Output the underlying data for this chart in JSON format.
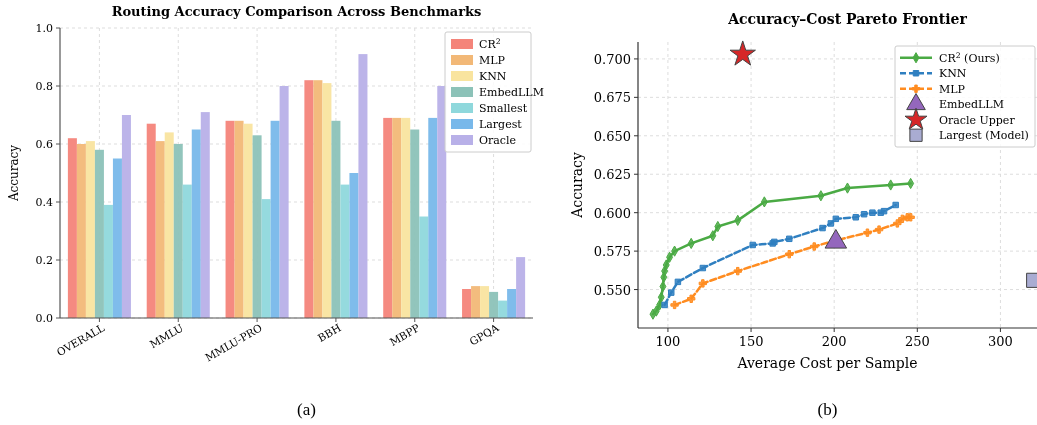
{
  "chart_data": [
    {
      "type": "bar",
      "title": "Routing Accuracy Comparison Across Benchmarks",
      "ylabel": "Accuracy",
      "categories": [
        "OVERALL",
        "MMLU",
        "MMLU-PRO",
        "BBH",
        "MBPP",
        "GPQA"
      ],
      "series": [
        {
          "name": "CR$^{2}$",
          "color": "#f4847a",
          "values": [
            0.62,
            0.67,
            0.68,
            0.82,
            0.69,
            0.1
          ]
        },
        {
          "name": "MLP",
          "color": "#f2b877",
          "values": [
            0.6,
            0.61,
            0.68,
            0.82,
            0.69,
            0.11
          ]
        },
        {
          "name": "KNN",
          "color": "#f9e49f",
          "values": [
            0.61,
            0.64,
            0.67,
            0.81,
            0.69,
            0.11
          ]
        },
        {
          "name": "EmbedLLM",
          "color": "#8cc2b8",
          "values": [
            0.58,
            0.6,
            0.63,
            0.68,
            0.65,
            0.09
          ]
        },
        {
          "name": "Smallest",
          "color": "#8fd8dc",
          "values": [
            0.39,
            0.46,
            0.41,
            0.46,
            0.35,
            0.06
          ]
        },
        {
          "name": "Largest",
          "color": "#78b8ea",
          "values": [
            0.55,
            0.65,
            0.68,
            0.5,
            0.69,
            0.1
          ]
        },
        {
          "name": "Oracle",
          "color": "#b8b0e8",
          "values": [
            0.7,
            0.71,
            0.8,
            0.91,
            0.8,
            0.21
          ]
        }
      ],
      "ylim": [
        0,
        1
      ],
      "yticks": [
        {
          "value": 0,
          "label": "0.0"
        },
        {
          "value": 0.2,
          "label": "0.2"
        },
        {
          "value": 0.4,
          "label": "0.4"
        },
        {
          "value": 0.6,
          "label": "0.6"
        },
        {
          "value": 0.8,
          "label": "0.8"
        },
        {
          "value": 1,
          "label": "1.0"
        }
      ],
      "grid": true,
      "legend": "top right",
      "annotations": [
        "(a)"
      ]
    },
    {
      "type": "line",
      "title": "Accuracy–Cost Pareto Frontier",
      "xlabel": "Average Cost per Sample",
      "ylabel": "Accuracy",
      "series": [
        {
          "name": "CR$^{2}$ (Ours)",
          "type": "line",
          "color": "#4aaa44",
          "marker": "diamond",
          "line_style": "solid",
          "x": [
            91,
            93,
            95,
            96,
            97,
            97.5,
            98,
            99,
            101,
            104,
            114,
            127,
            130,
            142,
            158,
            192,
            208,
            234,
            246
          ],
          "values": [
            0.534,
            0.536,
            0.54,
            0.545,
            0.552,
            0.558,
            0.562,
            0.566,
            0.571,
            0.575,
            0.58,
            0.585,
            0.591,
            0.595,
            0.607,
            0.611,
            0.616,
            0.618,
            0.619
          ]
        },
        {
          "name": "KNN",
          "type": "line",
          "color": "#2f7fc0",
          "marker": "square",
          "line_style": "dashed",
          "x": [
            98,
            102,
            106,
            121,
            151,
            163,
            164,
            173,
            193,
            198,
            201,
            213,
            218,
            223,
            228,
            230,
            237
          ],
          "values": [
            0.54,
            0.548,
            0.555,
            0.564,
            0.579,
            0.58,
            0.581,
            0.583,
            0.59,
            0.593,
            0.596,
            0.597,
            0.599,
            0.6,
            0.6,
            0.601,
            0.605
          ]
        },
        {
          "name": "MLP",
          "type": "line",
          "color": "#ff8c20",
          "marker": "cross",
          "line_style": "dashed",
          "x": [
            104,
            114,
            121,
            142,
            173,
            188,
            201,
            220,
            227,
            238,
            241,
            244,
            246
          ],
          "values": [
            0.54,
            0.544,
            0.554,
            0.562,
            0.573,
            0.578,
            0.582,
            0.587,
            0.589,
            0.593,
            0.596,
            0.597,
            0.597
          ]
        },
        {
          "name": "EmbedLLM",
          "type": "scatter",
          "color": "#9467bd",
          "marker": "triangle",
          "x": [
            201
          ],
          "values": [
            0.581
          ]
        },
        {
          "name": "Oracle Upper",
          "type": "scatter",
          "color": "#d62728",
          "marker": "star",
          "x": [
            145
          ],
          "values": [
            0.703
          ]
        },
        {
          "name": "Largest (Model)",
          "type": "scatter",
          "color": "#a9acd2",
          "marker": "square",
          "x": [
            320
          ],
          "values": [
            0.556
          ]
        }
      ],
      "xlim": [
        82,
        322
      ],
      "xticks": [
        100,
        150,
        200,
        250,
        300
      ],
      "ylim": [
        0.525,
        0.711
      ],
      "yticks": [
        {
          "value": 0.55,
          "label": "0.550"
        },
        {
          "value": 0.575,
          "label": "0.575"
        },
        {
          "value": 0.6,
          "label": "0.600"
        },
        {
          "value": 0.625,
          "label": "0.625"
        },
        {
          "value": 0.65,
          "label": "0.650"
        },
        {
          "value": 0.675,
          "label": "0.675"
        },
        {
          "value": 0.7,
          "label": "0.700"
        }
      ],
      "grid": true,
      "legend": "top right",
      "annotations": [
        "(b)"
      ]
    }
  ]
}
